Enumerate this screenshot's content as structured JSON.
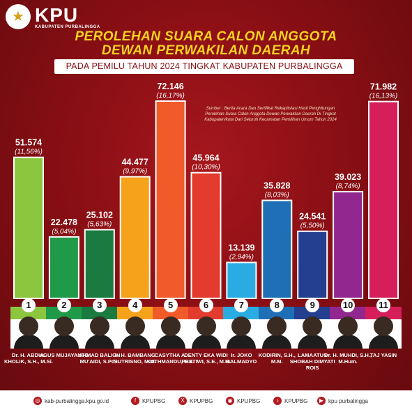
{
  "header": {
    "logo_text": "KPU",
    "logo_sub": "KABUPATEN PURBALINGGA",
    "title_line1": "PEROLEHAN SUARA CALON ANGGOTA",
    "title_line2": "DEWAN PERWAKILAN DAERAH",
    "subtitle": "PADA PEMILU TAHUN 2024 TINGKAT KABUPATEN PURBALINGGA",
    "source": "Sumber : Berita Acara Dan Sertifikat Rekapitulasi Hasil Penghitungan Perolehan Suara Calon Anggota Dewan Perwakilan Daerah Di Tingkat Kabupaten/kota Dari Seluruh Kecamatan Pemilihan Umum Tahun 2024"
  },
  "chart_data": {
    "type": "bar",
    "categories": [
      "1",
      "2",
      "3",
      "4",
      "5",
      "6",
      "7",
      "8",
      "9",
      "10",
      "11"
    ],
    "values": [
      51574,
      22478,
      25102,
      44477,
      72146,
      45964,
      13139,
      35828,
      24541,
      39023,
      71982
    ],
    "value_labels": [
      "51.574",
      "22.478",
      "25.102",
      "44.477",
      "72.146",
      "45.964",
      "13.139",
      "35.828",
      "24.541",
      "39.023",
      "71.982"
    ],
    "percent_labels": [
      "(11,56%)",
      "(5,04%)",
      "(5,63%)",
      "(9,97%)",
      "(16,17%)",
      "(10,30%)",
      "(2,94%)",
      "(8,03%)",
      "(5,50%)",
      "(8,74%)",
      "(16,13%)"
    ],
    "colors": [
      "#8cc63f",
      "#1f9a48",
      "#1a7a3f",
      "#f7a21b",
      "#f15a29",
      "#e33b2e",
      "#2aace2",
      "#1f6fb6",
      "#243f8f",
      "#92278f",
      "#d61f5a"
    ],
    "ylim": [
      0,
      72146
    ],
    "grid": false,
    "title": "",
    "xlabel": "",
    "ylabel": ""
  },
  "candidates": [
    {
      "number": "1",
      "name": "Dr. H. ABDUL KHOLIK, S.H., M.Si."
    },
    {
      "number": "2",
      "name": "AGUS MUJAYANTO"
    },
    {
      "number": "3",
      "name": "AHMAD BALIGH MU'AIDI, S.Pd.I."
    },
    {
      "number": "4",
      "name": "Ir. H. BAMBANG SUTRISNO, M.M."
    },
    {
      "number": "5",
      "name": "CASYTHA A. KATHMANDU, S.E."
    },
    {
      "number": "6",
      "name": "DENTY EKA WIDI PRATIWI, S.E., M.H."
    },
    {
      "number": "7",
      "name": "Ir. JOKO DALMADYO"
    },
    {
      "number": "8",
      "name": "KODIRIN, S.H., M.M."
    },
    {
      "number": "9",
      "name": "LAMAATUS SHOBAH DIMYATI ROIS"
    },
    {
      "number": "10",
      "name": "Dr. H. MUHDI, S.H., M.Hum."
    },
    {
      "number": "11",
      "name": "TAJ YASIN"
    }
  ],
  "footer": {
    "website": "kab-purbalingga.kpu.go.id",
    "facebook": "KPUPBG",
    "x": "KPUPBG",
    "instagram": "KPUPBG",
    "tiktok": "KPUPBG",
    "youtube": "kpu purbalingga"
  }
}
